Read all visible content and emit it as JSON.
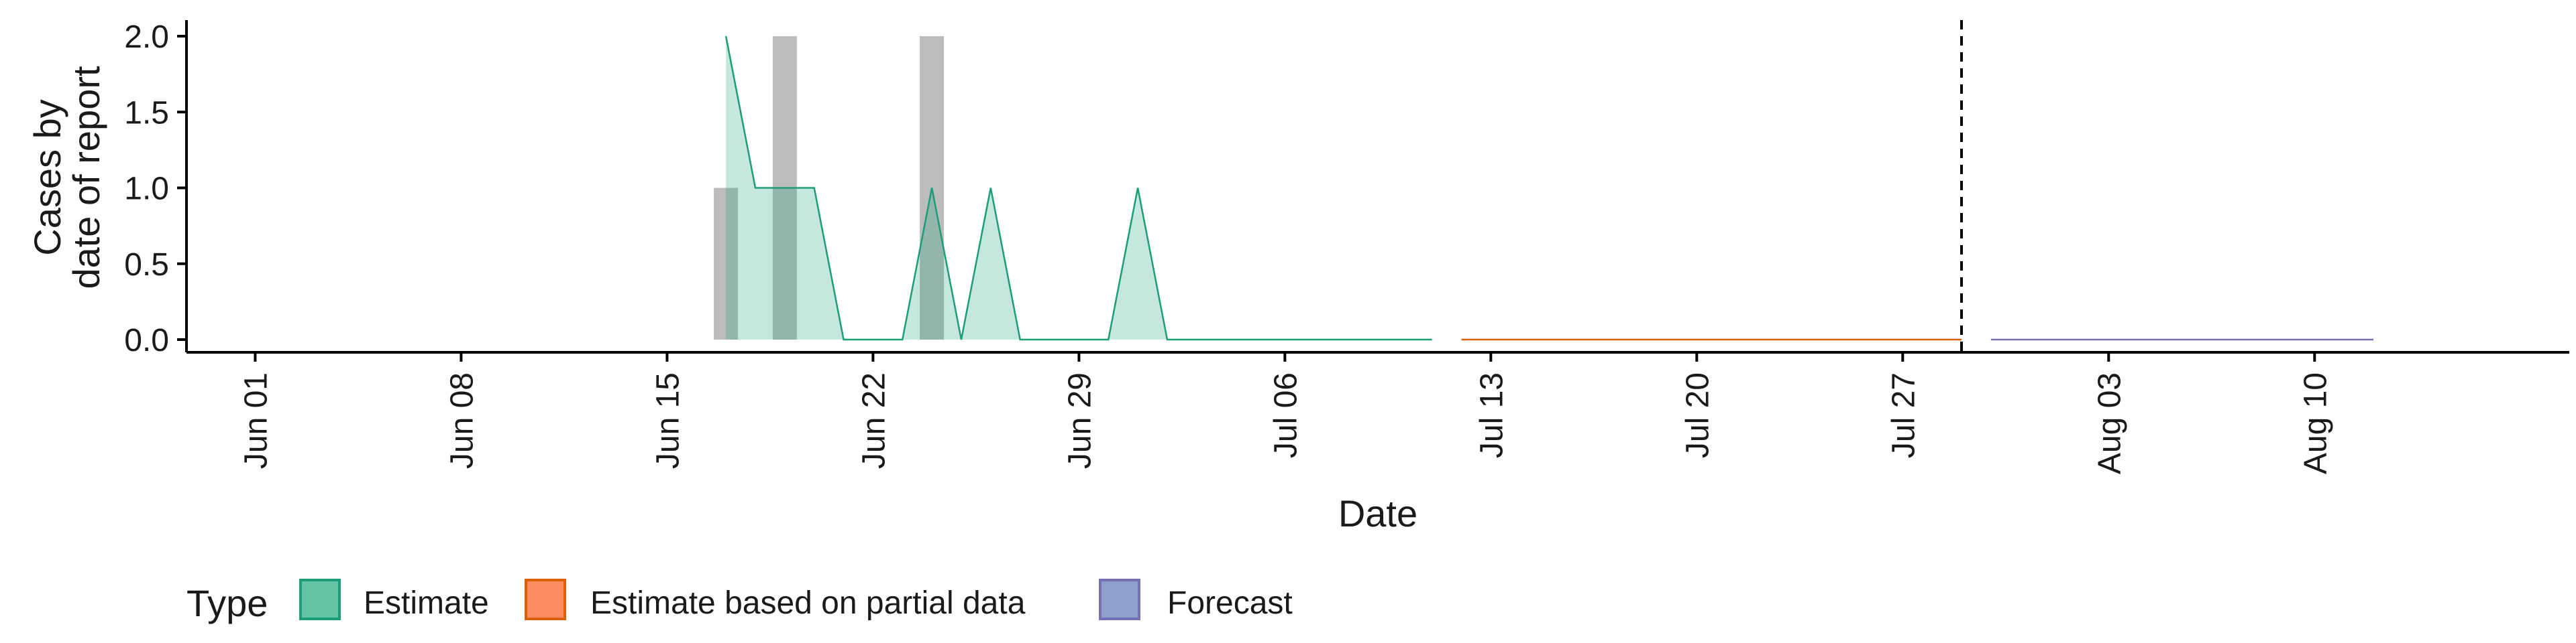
{
  "chart_data": {
    "type": "area",
    "xlabel": "Date",
    "ylabel_lines": [
      "Cases by",
      "date of report"
    ],
    "ylim": [
      0,
      2.0
    ],
    "y_ticks": [
      "0.0",
      "0.5",
      "1.0",
      "1.5",
      "2.0"
    ],
    "x_domain": [
      "2020-05-28",
      "2020-08-19"
    ],
    "x_ticks": [
      {
        "date": "2020-06-01",
        "label": "Jun 01"
      },
      {
        "date": "2020-06-08",
        "label": "Jun 08"
      },
      {
        "date": "2020-06-15",
        "label": "Jun 15"
      },
      {
        "date": "2020-06-22",
        "label": "Jun 22"
      },
      {
        "date": "2020-06-29",
        "label": "Jun 29"
      },
      {
        "date": "2020-07-06",
        "label": "Jul 06"
      },
      {
        "date": "2020-07-13",
        "label": "Jul 13"
      },
      {
        "date": "2020-07-20",
        "label": "Jul 20"
      },
      {
        "date": "2020-07-27",
        "label": "Jul 27"
      },
      {
        "date": "2020-08-03",
        "label": "Aug 03"
      },
      {
        "date": "2020-08-10",
        "label": "Aug 10"
      }
    ],
    "reported_cases": [
      {
        "date": "2020-06-17",
        "value": 1
      },
      {
        "date": "2020-06-19",
        "value": 2
      },
      {
        "date": "2020-06-24",
        "value": 2
      }
    ],
    "series": [
      {
        "name": "Estimate",
        "color": "#1b9e77",
        "x": [
          "2020-06-17",
          "2020-06-18",
          "2020-06-19",
          "2020-06-20",
          "2020-06-21",
          "2020-06-22",
          "2020-06-23",
          "2020-06-24",
          "2020-06-25",
          "2020-06-26",
          "2020-06-27",
          "2020-06-28",
          "2020-06-29",
          "2020-06-30",
          "2020-07-01",
          "2020-07-02",
          "2020-07-03",
          "2020-07-04",
          "2020-07-05",
          "2020-07-06",
          "2020-07-07",
          "2020-07-08",
          "2020-07-09",
          "2020-07-10",
          "2020-07-11"
        ],
        "y": [
          2,
          1,
          1,
          1,
          0,
          0,
          0,
          1,
          0,
          1,
          0,
          0,
          0,
          0,
          1,
          0,
          0,
          0,
          0,
          0,
          0,
          0,
          0,
          0,
          0
        ]
      },
      {
        "name": "Estimate based on partial data",
        "color": "#d95f02",
        "x": [
          "2020-07-12",
          "2020-07-29"
        ],
        "y": [
          0,
          0
        ]
      },
      {
        "name": "Forecast",
        "color": "#7570b3",
        "x": [
          "2020-07-30",
          "2020-08-12"
        ],
        "y": [
          0,
          0
        ]
      }
    ],
    "vline_date": "2020-07-29",
    "legend": {
      "title": "Type",
      "position": "bottom",
      "items": [
        {
          "label": "Estimate",
          "fill": "#66c2a5",
          "stroke": "#1b9e77"
        },
        {
          "label": "Estimate based on partial data",
          "fill": "#fc8d62",
          "stroke": "#d95f02"
        },
        {
          "label": "Forecast",
          "fill": "#8da0cb",
          "stroke": "#7570b3"
        }
      ]
    },
    "grid": false
  }
}
